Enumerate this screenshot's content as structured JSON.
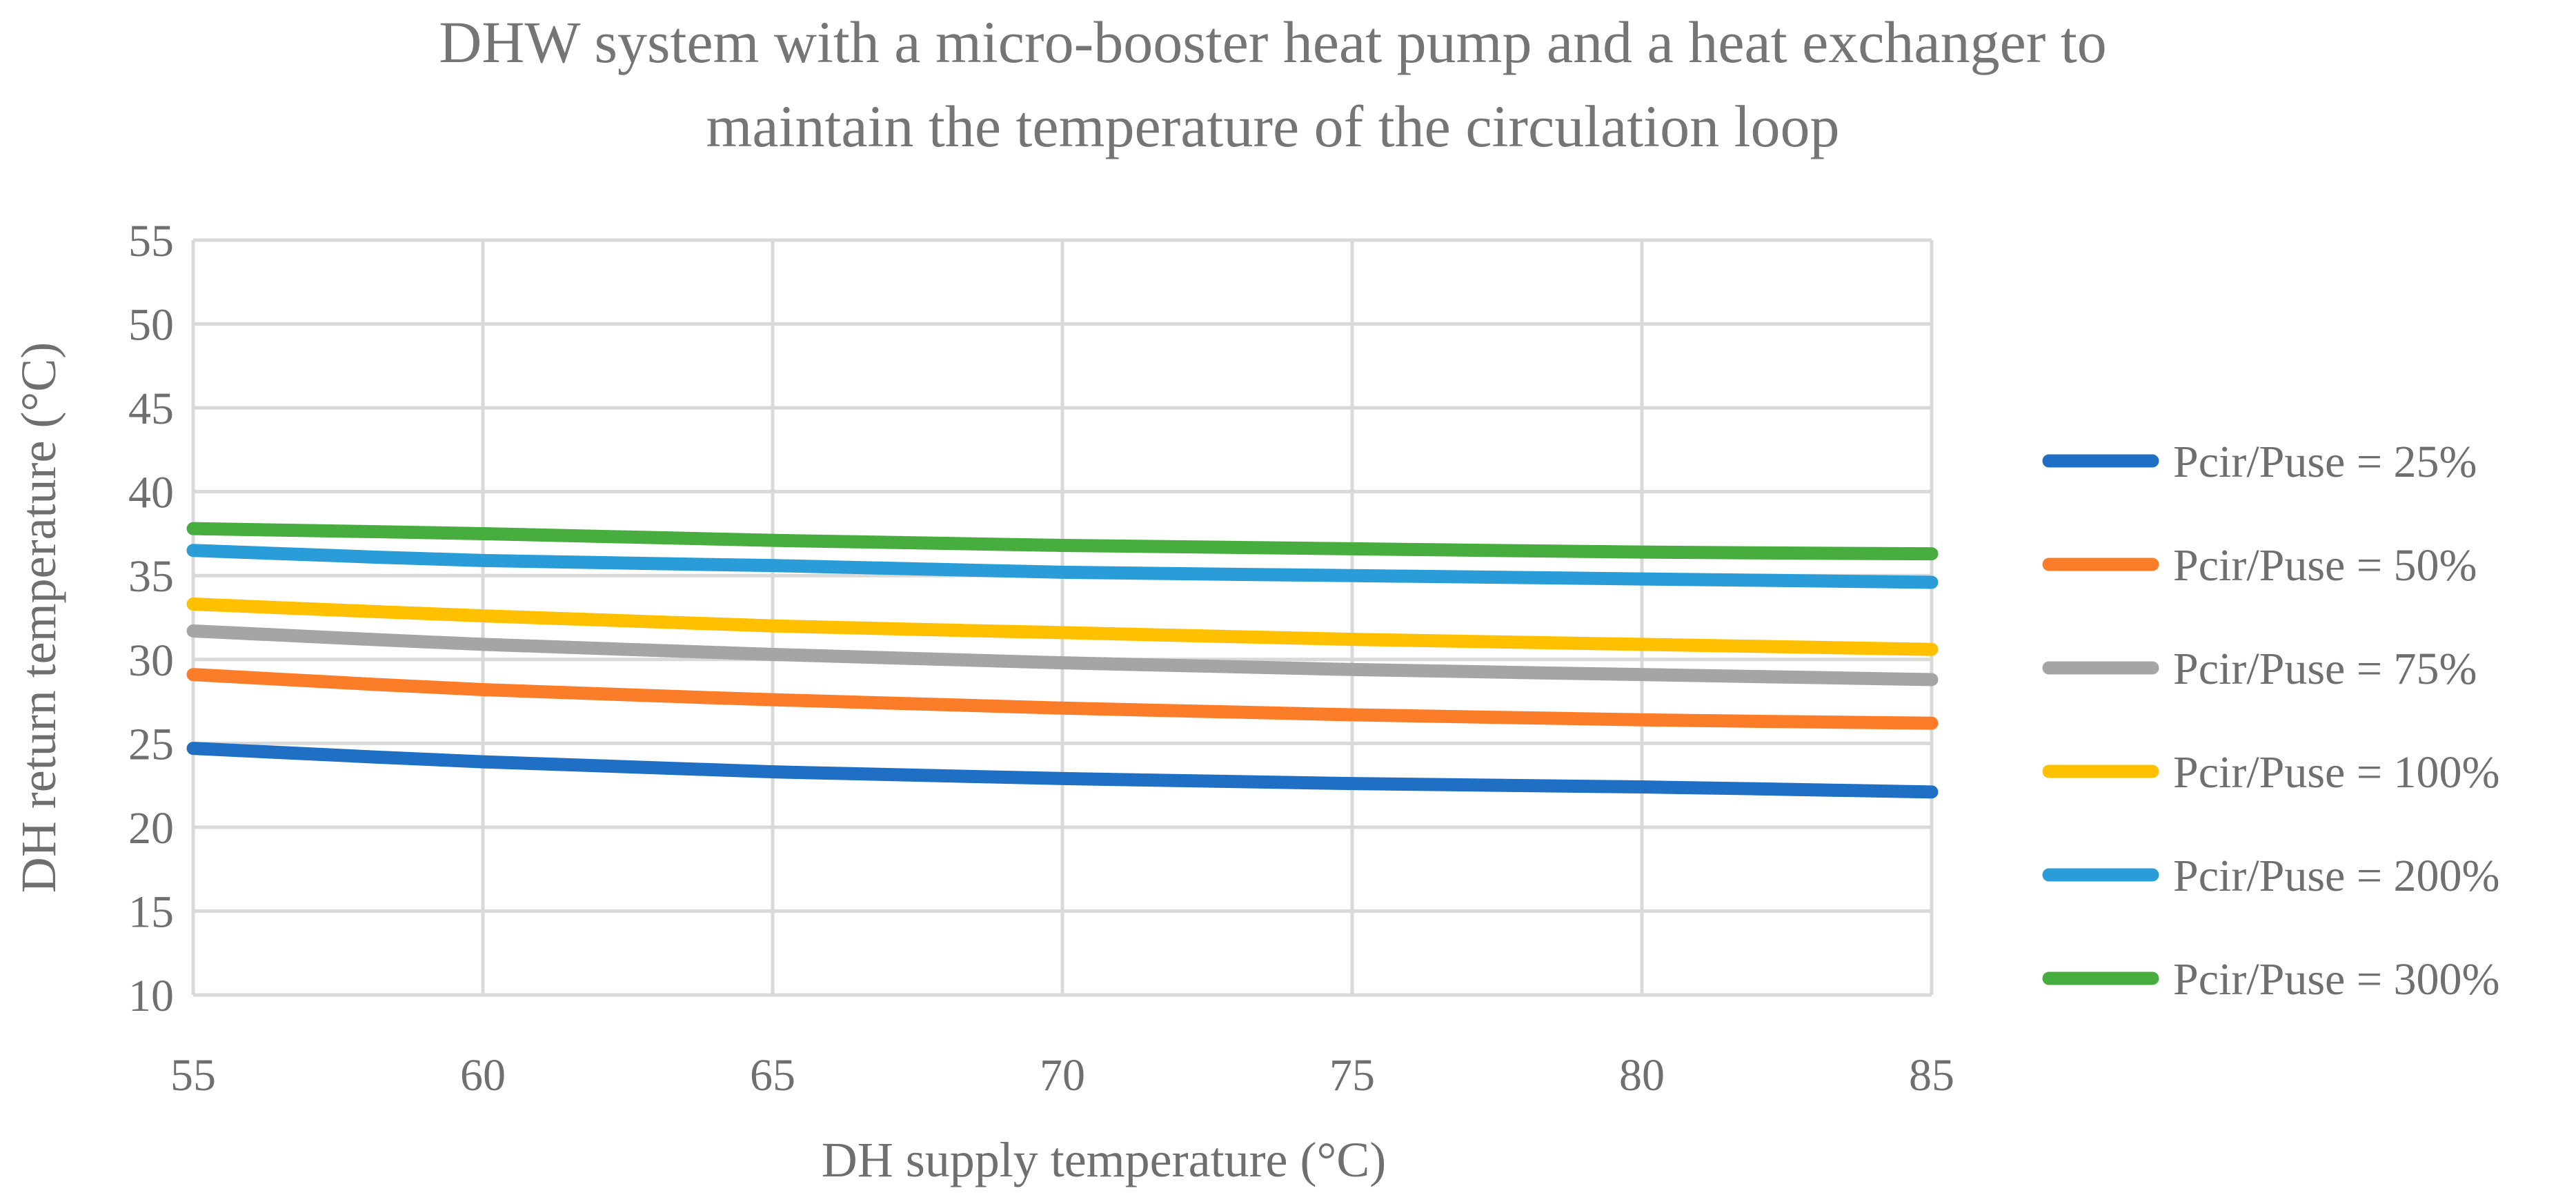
{
  "chart_data": {
    "type": "line",
    "title": [
      "DHW system with a micro-booster heat pump and a heat exchanger to",
      "maintain the temperature of the circulation loop"
    ],
    "xlabel": "DH supply temperature (°C)",
    "ylabel": "DH return temperature (°C)",
    "xlim": [
      55,
      85
    ],
    "ylim": [
      10,
      55
    ],
    "xticks": [
      55,
      60,
      65,
      70,
      75,
      80,
      85
    ],
    "yticks": [
      10,
      15,
      20,
      25,
      30,
      35,
      40,
      45,
      50,
      55
    ],
    "grid": true,
    "legend_position": "right",
    "x": [
      55,
      60,
      65,
      70,
      75,
      80,
      85
    ],
    "series": [
      {
        "name": "Pcir/Puse = 25%",
        "color": "#1f6fc5",
        "values": [
          24.7,
          23.9,
          23.3,
          22.9,
          22.6,
          22.4,
          22.1
        ]
      },
      {
        "name": "Pcir/Puse = 50%",
        "color": "#fb7d2a",
        "values": [
          29.1,
          28.2,
          27.6,
          27.1,
          26.7,
          26.4,
          26.2
        ]
      },
      {
        "name": "Pcir/Puse = 75%",
        "color": "#a5a5a5",
        "values": [
          31.7,
          30.9,
          30.3,
          29.8,
          29.4,
          29.1,
          28.8
        ]
      },
      {
        "name": "Pcir/Puse = 100%",
        "color": "#ffc000",
        "values": [
          33.3,
          32.6,
          32.0,
          31.6,
          31.2,
          30.9,
          30.6
        ]
      },
      {
        "name": "Pcir/Puse = 200%",
        "color": "#2a9cd8",
        "values": [
          36.5,
          35.9,
          35.6,
          35.2,
          35.0,
          34.8,
          34.6
        ]
      },
      {
        "name": "Pcir/Puse = 300%",
        "color": "#47ad3e",
        "values": [
          37.8,
          37.5,
          37.1,
          36.8,
          36.6,
          36.4,
          36.3
        ]
      }
    ]
  }
}
